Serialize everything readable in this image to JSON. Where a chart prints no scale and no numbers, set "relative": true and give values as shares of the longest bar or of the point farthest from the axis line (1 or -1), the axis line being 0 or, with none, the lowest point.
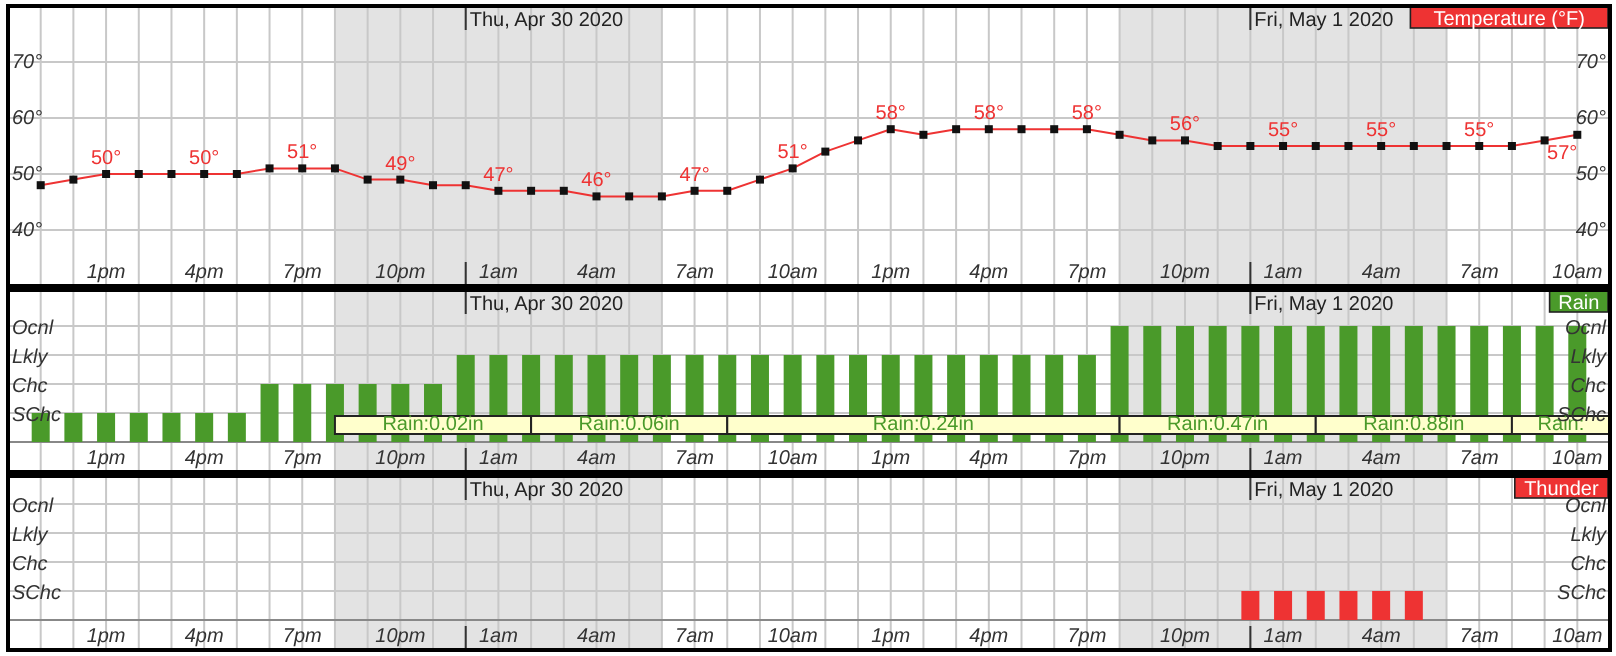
{
  "chart_data": [
    {
      "type": "line",
      "xlim": [
        "2020-04-29T10:00",
        "2020-05-01T11:00"
      ],
      "ylim": [
        30,
        80
      ],
      "y2lim": [
        30,
        80
      ],
      "x": [
        "2020-04-29T11:00",
        "2020-04-29T12:00",
        "2020-04-29T13:00",
        "2020-04-29T14:00",
        "2020-04-29T15:00",
        "2020-04-29T16:00",
        "2020-04-29T17:00",
        "2020-04-29T18:00",
        "2020-04-29T19:00",
        "2020-04-29T20:00",
        "2020-04-29T21:00",
        "2020-04-29T22:00",
        "2020-04-29T23:00",
        "2020-04-30T00:00",
        "2020-04-30T01:00",
        "2020-04-30T02:00",
        "2020-04-30T03:00",
        "2020-04-30T04:00",
        "2020-04-30T05:00",
        "2020-04-30T06:00",
        "2020-04-30T07:00",
        "2020-04-30T08:00",
        "2020-04-30T09:00",
        "2020-04-30T10:00",
        "2020-04-30T11:00",
        "2020-04-30T12:00",
        "2020-04-30T13:00",
        "2020-04-30T14:00",
        "2020-04-30T15:00",
        "2020-04-30T16:00",
        "2020-04-30T17:00",
        "2020-04-30T18:00",
        "2020-04-30T19:00",
        "2020-04-30T20:00",
        "2020-04-30T21:00",
        "2020-04-30T22:00",
        "2020-04-30T23:00",
        "2020-05-01T00:00",
        "2020-05-01T01:00",
        "2020-05-01T02:00",
        "2020-05-01T03:00",
        "2020-05-01T04:00",
        "2020-05-01T05:00",
        "2020-05-01T06:00",
        "2020-05-01T07:00",
        "2020-05-01T08:00",
        "2020-05-01T09:00",
        "2020-05-01T10:00"
      ],
      "xticks": [
        {
          "value": "2020-04-29T11:00",
          "label": null
        },
        {
          "value": "2020-04-29T12:00",
          "label": null
        },
        {
          "value": "2020-04-29T13:00",
          "label": "1pm"
        },
        {
          "value": "2020-04-29T14:00",
          "label": null
        },
        {
          "value": "2020-04-29T15:00",
          "label": null
        },
        {
          "value": "2020-04-29T16:00",
          "label": "4pm"
        },
        {
          "value": "2020-04-29T17:00",
          "label": null
        },
        {
          "value": "2020-04-29T18:00",
          "label": null
        },
        {
          "value": "2020-04-29T19:00",
          "label": "7pm"
        },
        {
          "value": "2020-04-29T20:00",
          "label": null
        },
        {
          "value": "2020-04-29T21:00",
          "label": null
        },
        {
          "value": "2020-04-29T22:00",
          "label": "10pm"
        },
        {
          "value": "2020-04-29T23:00",
          "label": null
        },
        {
          "value": "2020-04-30T00:00",
          "label": null
        },
        {
          "value": "2020-04-30T01:00",
          "label": "1am"
        },
        {
          "value": "2020-04-30T02:00",
          "label": null
        },
        {
          "value": "2020-04-30T03:00",
          "label": null
        },
        {
          "value": "2020-04-30T04:00",
          "label": "4am"
        },
        {
          "value": "2020-04-30T05:00",
          "label": null
        },
        {
          "value": "2020-04-30T06:00",
          "label": null
        },
        {
          "value": "2020-04-30T07:00",
          "label": "7am"
        },
        {
          "value": "2020-04-30T08:00",
          "label": null
        },
        {
          "value": "2020-04-30T09:00",
          "label": null
        },
        {
          "value": "2020-04-30T10:00",
          "label": "10am"
        },
        {
          "value": "2020-04-30T11:00",
          "label": null
        },
        {
          "value": "2020-04-30T12:00",
          "label": null
        },
        {
          "value": "2020-04-30T13:00",
          "label": "1pm"
        },
        {
          "value": "2020-04-30T14:00",
          "label": null
        },
        {
          "value": "2020-04-30T15:00",
          "label": null
        },
        {
          "value": "2020-04-30T16:00",
          "label": "4pm"
        },
        {
          "value": "2020-04-30T17:00",
          "label": null
        },
        {
          "value": "2020-04-30T18:00",
          "label": null
        },
        {
          "value": "2020-04-30T19:00",
          "label": "7pm"
        },
        {
          "value": "2020-04-30T20:00",
          "label": null
        },
        {
          "value": "2020-04-30T21:00",
          "label": null
        },
        {
          "value": "2020-04-30T22:00",
          "label": "10pm"
        },
        {
          "value": "2020-04-30T23:00",
          "label": null
        },
        {
          "value": "2020-05-01T00:00",
          "label": null
        },
        {
          "value": "2020-05-01T01:00",
          "label": "1am"
        },
        {
          "value": "2020-05-01T02:00",
          "label": null
        },
        {
          "value": "2020-05-01T03:00",
          "label": null
        },
        {
          "value": "2020-05-01T04:00",
          "label": "4am"
        },
        {
          "value": "2020-05-01T05:00",
          "label": null
        },
        {
          "value": "2020-05-01T06:00",
          "label": null
        },
        {
          "value": "2020-05-01T07:00",
          "label": "7am"
        },
        {
          "value": "2020-05-01T08:00",
          "label": null
        },
        {
          "value": "2020-05-01T09:00",
          "label": null
        },
        {
          "value": "2020-05-01T10:00",
          "label": "10am"
        }
      ],
      "yticks": [
        {
          "value": 40,
          "label": "40°"
        },
        {
          "value": 50,
          "label": "50°"
        },
        {
          "value": 60,
          "label": "60°"
        },
        {
          "value": 70,
          "label": "70°"
        }
      ],
      "y2ticks": [
        {
          "value": 40,
          "label": "40°"
        },
        {
          "value": 50,
          "label": "50°"
        },
        {
          "value": 60,
          "label": "60°"
        },
        {
          "value": 70,
          "label": "70°"
        }
      ],
      "grid": true,
      "legend": "top right",
      "marker": "square",
      "bands": [
        {
          "axis": "x",
          "from": "2020-04-29T20:00",
          "to": "2020-04-30T06:00",
          "color": "#e3e3e3"
        },
        {
          "axis": "x",
          "from": "2020-04-30T20:00",
          "to": "2020-05-01T06:00",
          "color": "#e3e3e3"
        }
      ],
      "ref_lines": [
        {
          "axis": "x",
          "value": "2020-04-30T00:00",
          "label": "Thu, Apr 30 2020"
        },
        {
          "axis": "x",
          "value": "2020-05-01T00:00",
          "label": "Fri, May 1 2020"
        }
      ],
      "series": [
        {
          "name": "Temperature (°F)",
          "color": "#ee3333",
          "values": [
            48,
            49,
            50,
            50,
            50,
            50,
            50,
            51,
            51,
            51,
            49,
            49,
            48,
            48,
            47,
            47,
            47,
            46,
            46,
            46,
            47,
            47,
            49,
            51,
            54,
            56,
            58,
            57,
            58,
            58,
            58,
            58,
            58,
            57,
            56,
            56,
            55,
            55,
            55,
            55,
            55,
            55,
            55,
            55,
            55,
            55,
            56,
            57
          ],
          "value_labels": [
            null,
            null,
            "50°",
            null,
            null,
            "50°",
            null,
            null,
            "51°",
            null,
            null,
            "49°",
            null,
            null,
            "47°",
            null,
            null,
            "46°",
            null,
            null,
            "47°",
            null,
            null,
            "51°",
            null,
            null,
            "58°",
            null,
            null,
            "58°",
            null,
            null,
            "58°",
            null,
            null,
            "56°",
            null,
            null,
            "55°",
            null,
            null,
            "55°",
            null,
            null,
            "55°",
            null,
            null,
            "57°"
          ]
        }
      ]
    },
    {
      "type": "bar",
      "xlim": [
        "2020-04-29T10:00",
        "2020-05-01T11:00"
      ],
      "relative": true,
      "annotations": [
        "SChc",
        "Chc",
        "Lkly",
        "Ocnl",
        "SChc",
        "Chc",
        "Lkly",
        "Ocnl"
      ],
      "x": [
        "2020-04-29T11:00",
        "2020-04-29T12:00",
        "2020-04-29T13:00",
        "2020-04-29T14:00",
        "2020-04-29T15:00",
        "2020-04-29T16:00",
        "2020-04-29T17:00",
        "2020-04-29T18:00",
        "2020-04-29T19:00",
        "2020-04-29T20:00",
        "2020-04-29T21:00",
        "2020-04-29T22:00",
        "2020-04-29T23:00",
        "2020-04-30T00:00",
        "2020-04-30T01:00",
        "2020-04-30T02:00",
        "2020-04-30T03:00",
        "2020-04-30T04:00",
        "2020-04-30T05:00",
        "2020-04-30T06:00",
        "2020-04-30T07:00",
        "2020-04-30T08:00",
        "2020-04-30T09:00",
        "2020-04-30T10:00",
        "2020-04-30T11:00",
        "2020-04-30T12:00",
        "2020-04-30T13:00",
        "2020-04-30T14:00",
        "2020-04-30T15:00",
        "2020-04-30T16:00",
        "2020-04-30T17:00",
        "2020-04-30T18:00",
        "2020-04-30T19:00",
        "2020-04-30T20:00",
        "2020-04-30T21:00",
        "2020-04-30T22:00",
        "2020-04-30T23:00",
        "2020-05-01T00:00",
        "2020-05-01T01:00",
        "2020-05-01T02:00",
        "2020-05-01T03:00",
        "2020-05-01T04:00",
        "2020-05-01T05:00",
        "2020-05-01T06:00",
        "2020-05-01T07:00",
        "2020-05-01T08:00",
        "2020-05-01T09:00",
        "2020-05-01T10:00"
      ],
      "xticks": [
        {
          "value": "2020-04-29T11:00",
          "label": null
        },
        {
          "value": "2020-04-29T12:00",
          "label": null
        },
        {
          "value": "2020-04-29T13:00",
          "label": "1pm"
        },
        {
          "value": "2020-04-29T14:00",
          "label": null
        },
        {
          "value": "2020-04-29T15:00",
          "label": null
        },
        {
          "value": "2020-04-29T16:00",
          "label": "4pm"
        },
        {
          "value": "2020-04-29T17:00",
          "label": null
        },
        {
          "value": "2020-04-29T18:00",
          "label": null
        },
        {
          "value": "2020-04-29T19:00",
          "label": "7pm"
        },
        {
          "value": "2020-04-29T20:00",
          "label": null
        },
        {
          "value": "2020-04-29T21:00",
          "label": null
        },
        {
          "value": "2020-04-29T22:00",
          "label": "10pm"
        },
        {
          "value": "2020-04-29T23:00",
          "label": null
        },
        {
          "value": "2020-04-30T00:00",
          "label": null
        },
        {
          "value": "2020-04-30T01:00",
          "label": "1am"
        },
        {
          "value": "2020-04-30T02:00",
          "label": null
        },
        {
          "value": "2020-04-30T03:00",
          "label": null
        },
        {
          "value": "2020-04-30T04:00",
          "label": "4am"
        },
        {
          "value": "2020-04-30T05:00",
          "label": null
        },
        {
          "value": "2020-04-30T06:00",
          "label": null
        },
        {
          "value": "2020-04-30T07:00",
          "label": "7am"
        },
        {
          "value": "2020-04-30T08:00",
          "label": null
        },
        {
          "value": "2020-04-30T09:00",
          "label": null
        },
        {
          "value": "2020-04-30T10:00",
          "label": "10am"
        },
        {
          "value": "2020-04-30T11:00",
          "label": null
        },
        {
          "value": "2020-04-30T12:00",
          "label": null
        },
        {
          "value": "2020-04-30T13:00",
          "label": "1pm"
        },
        {
          "value": "2020-04-30T14:00",
          "label": null
        },
        {
          "value": "2020-04-30T15:00",
          "label": null
        },
        {
          "value": "2020-04-30T16:00",
          "label": "4pm"
        },
        {
          "value": "2020-04-30T17:00",
          "label": null
        },
        {
          "value": "2020-04-30T18:00",
          "label": null
        },
        {
          "value": "2020-04-30T19:00",
          "label": "7pm"
        },
        {
          "value": "2020-04-30T20:00",
          "label": null
        },
        {
          "value": "2020-04-30T21:00",
          "label": null
        },
        {
          "value": "2020-04-30T22:00",
          "label": "10pm"
        },
        {
          "value": "2020-04-30T23:00",
          "label": null
        },
        {
          "value": "2020-05-01T00:00",
          "label": null
        },
        {
          "value": "2020-05-01T01:00",
          "label": "1am"
        },
        {
          "value": "2020-05-01T02:00",
          "label": null
        },
        {
          "value": "2020-05-01T03:00",
          "label": null
        },
        {
          "value": "2020-05-01T04:00",
          "label": "4am"
        },
        {
          "value": "2020-05-01T05:00",
          "label": null
        },
        {
          "value": "2020-05-01T06:00",
          "label": null
        },
        {
          "value": "2020-05-01T07:00",
          "label": "7am"
        },
        {
          "value": "2020-05-01T08:00",
          "label": null
        },
        {
          "value": "2020-05-01T09:00",
          "label": null
        },
        {
          "value": "2020-05-01T10:00",
          "label": "10am"
        }
      ],
      "grid": true,
      "legend": "top right",
      "bands": [
        {
          "axis": "x",
          "from": "2020-04-29T20:00",
          "to": "2020-04-30T06:00",
          "color": "#e3e3e3"
        },
        {
          "axis": "x",
          "from": "2020-04-30T20:00",
          "to": "2020-05-01T06:00",
          "color": "#e3e3e3"
        },
        {
          "axis": "x",
          "from": "2020-04-29T20:00",
          "to": "2020-04-30T02:00",
          "label": "Rain:0.02in",
          "color": "#ffffcc"
        },
        {
          "axis": "x",
          "from": "2020-04-30T02:00",
          "to": "2020-04-30T08:00",
          "label": "Rain:0.06in",
          "color": "#ffffcc"
        },
        {
          "axis": "x",
          "from": "2020-04-30T08:00",
          "to": "2020-04-30T20:00",
          "label": "Rain:0.24in",
          "color": "#ffffcc"
        },
        {
          "axis": "x",
          "from": "2020-04-30T20:00",
          "to": "2020-05-01T02:00",
          "label": "Rain:0.47in",
          "color": "#ffffcc"
        },
        {
          "axis": "x",
          "from": "2020-05-01T02:00",
          "to": "2020-05-01T08:00",
          "label": "Rain:0.88in",
          "color": "#ffffcc"
        },
        {
          "axis": "x",
          "from": "2020-05-01T08:00",
          "to": "2020-05-01T11:00",
          "label": "Rain:",
          "color": "#ffffcc"
        }
      ],
      "ref_lines": [
        {
          "axis": "x",
          "value": "2020-04-30T00:00",
          "label": "Thu, Apr 30 2020"
        },
        {
          "axis": "x",
          "value": "2020-05-01T00:00",
          "label": "Fri, May 1 2020"
        }
      ],
      "series": [
        {
          "name": "Rain",
          "color": "#4a9a2a",
          "values": [
            0.25,
            0.25,
            0.25,
            0.25,
            0.25,
            0.25,
            0.25,
            0.5,
            0.5,
            0.5,
            0.5,
            0.5,
            0.5,
            0.75,
            0.75,
            0.75,
            0.75,
            0.75,
            0.75,
            0.75,
            0.75,
            0.75,
            0.75,
            0.75,
            0.75,
            0.75,
            0.75,
            0.75,
            0.75,
            0.75,
            0.75,
            0.75,
            0.75,
            1,
            1,
            1,
            1,
            1,
            1,
            1,
            1,
            1,
            1,
            1,
            1,
            1,
            1,
            1
          ]
        }
      ]
    },
    {
      "type": "bar",
      "xlim": [
        "2020-04-29T10:00",
        "2020-05-01T11:00"
      ],
      "relative": true,
      "annotations": [
        "SChc",
        "Chc",
        "Lkly",
        "Ocnl",
        "SChc",
        "Chc",
        "Lkly",
        "Ocnl"
      ],
      "xticks": [
        {
          "value": "2020-04-29T11:00",
          "label": null
        },
        {
          "value": "2020-04-29T12:00",
          "label": null
        },
        {
          "value": "2020-04-29T13:00",
          "label": "1pm"
        },
        {
          "value": "2020-04-29T14:00",
          "label": null
        },
        {
          "value": "2020-04-29T15:00",
          "label": null
        },
        {
          "value": "2020-04-29T16:00",
          "label": "4pm"
        },
        {
          "value": "2020-04-29T17:00",
          "label": null
        },
        {
          "value": "2020-04-29T18:00",
          "label": null
        },
        {
          "value": "2020-04-29T19:00",
          "label": "7pm"
        },
        {
          "value": "2020-04-29T20:00",
          "label": null
        },
        {
          "value": "2020-04-29T21:00",
          "label": null
        },
        {
          "value": "2020-04-29T22:00",
          "label": "10pm"
        },
        {
          "value": "2020-04-29T23:00",
          "label": null
        },
        {
          "value": "2020-04-30T00:00",
          "label": null
        },
        {
          "value": "2020-04-30T01:00",
          "label": "1am"
        },
        {
          "value": "2020-04-30T02:00",
          "label": null
        },
        {
          "value": "2020-04-30T03:00",
          "label": null
        },
        {
          "value": "2020-04-30T04:00",
          "label": "4am"
        },
        {
          "value": "2020-04-30T05:00",
          "label": null
        },
        {
          "value": "2020-04-30T06:00",
          "label": null
        },
        {
          "value": "2020-04-30T07:00",
          "label": "7am"
        },
        {
          "value": "2020-04-30T08:00",
          "label": null
        },
        {
          "value": "2020-04-30T09:00",
          "label": null
        },
        {
          "value": "2020-04-30T10:00",
          "label": "10am"
        },
        {
          "value": "2020-04-30T11:00",
          "label": null
        },
        {
          "value": "2020-04-30T12:00",
          "label": null
        },
        {
          "value": "2020-04-30T13:00",
          "label": "1pm"
        },
        {
          "value": "2020-04-30T14:00",
          "label": null
        },
        {
          "value": "2020-04-30T15:00",
          "label": null
        },
        {
          "value": "2020-04-30T16:00",
          "label": "4pm"
        },
        {
          "value": "2020-04-30T17:00",
          "label": null
        },
        {
          "value": "2020-04-30T18:00",
          "label": null
        },
        {
          "value": "2020-04-30T19:00",
          "label": "7pm"
        },
        {
          "value": "2020-04-30T20:00",
          "label": null
        },
        {
          "value": "2020-04-30T21:00",
          "label": null
        },
        {
          "value": "2020-04-30T22:00",
          "label": "10pm"
        },
        {
          "value": "2020-04-30T23:00",
          "label": null
        },
        {
          "value": "2020-05-01T00:00",
          "label": null
        },
        {
          "value": "2020-05-01T01:00",
          "label": "1am"
        },
        {
          "value": "2020-05-01T02:00",
          "label": null
        },
        {
          "value": "2020-05-01T03:00",
          "label": null
        },
        {
          "value": "2020-05-01T04:00",
          "label": "4am"
        },
        {
          "value": "2020-05-01T05:00",
          "label": null
        },
        {
          "value": "2020-05-01T06:00",
          "label": null
        },
        {
          "value": "2020-05-01T07:00",
          "label": "7am"
        },
        {
          "value": "2020-05-01T08:00",
          "label": null
        },
        {
          "value": "2020-05-01T09:00",
          "label": null
        },
        {
          "value": "2020-05-01T10:00",
          "label": "10am"
        }
      ],
      "grid": true,
      "legend": "top right",
      "bands": [
        {
          "axis": "x",
          "from": "2020-04-29T20:00",
          "to": "2020-04-30T06:00",
          "color": "#e3e3e3"
        },
        {
          "axis": "x",
          "from": "2020-04-30T20:00",
          "to": "2020-05-01T06:00",
          "color": "#e3e3e3"
        }
      ],
      "ref_lines": [
        {
          "axis": "x",
          "value": "2020-04-30T00:00",
          "label": "Thu, Apr 30 2020"
        },
        {
          "axis": "x",
          "value": "2020-05-01T00:00",
          "label": "Fri, May 1 2020"
        }
      ],
      "series": [
        {
          "name": "Thunder",
          "color": "#ee3333",
          "x": [
            "2020-05-01T00:00",
            "2020-05-01T01:00",
            "2020-05-01T02:00",
            "2020-05-01T03:00",
            "2020-05-01T04:00",
            "2020-05-01T05:00"
          ],
          "values": [
            1,
            1,
            1,
            1,
            1,
            1
          ]
        }
      ]
    }
  ]
}
